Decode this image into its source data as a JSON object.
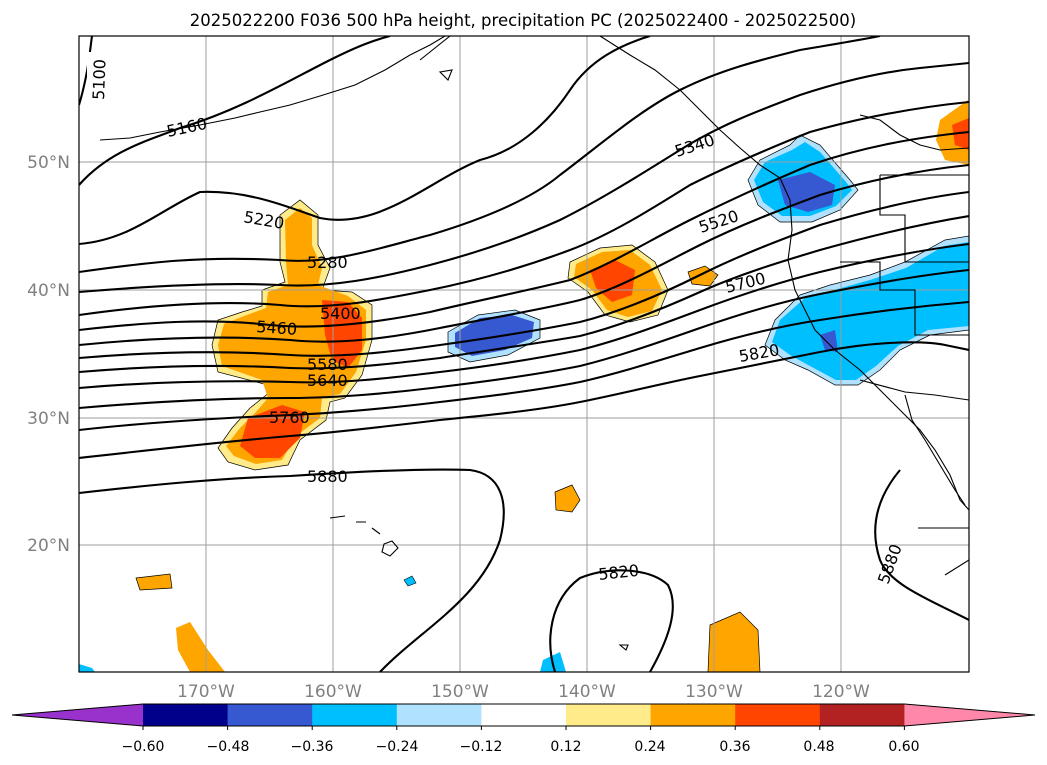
{
  "title": "2025022200 F036 500 hPa height, precipitation PC (2025022400 - 2025022500)",
  "lat_labels": [
    "50°N",
    "40°N",
    "30°N",
    "20°N"
  ],
  "lon_labels": [
    "170°W",
    "160°W",
    "150°W",
    "140°W",
    "130°W",
    "120°W"
  ],
  "contour_labels": [
    "5100",
    "5160",
    "5220",
    "5280",
    "5340",
    "5400",
    "5460",
    "5520",
    "5580",
    "5640",
    "5700",
    "5760",
    "5820",
    "5880",
    "5820",
    "5880"
  ],
  "colorbar": {
    "ticks": [
      "−0.60",
      "−0.48",
      "−0.36",
      "−0.24",
      "−0.12",
      "0.12",
      "0.24",
      "0.36",
      "0.48",
      "0.60"
    ],
    "colors": [
      "#9932cc",
      "#00008b",
      "#3658d0",
      "#00bfff",
      "#b0e2ff",
      "#ffffff",
      "#ffeb8a",
      "#ffa500",
      "#ff4500",
      "#b22222",
      "#ff88aa"
    ]
  },
  "map_extent": {
    "lon_min": -180,
    "lon_max": -110,
    "lat_min": 10,
    "lat_max": 60
  },
  "gridlines": true
}
